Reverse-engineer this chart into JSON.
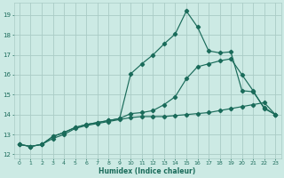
{
  "xlabel": "Humidex (Indice chaleur)",
  "bg_color": "#cceae4",
  "grid_color": "#aaccc6",
  "line_color": "#1a6b5a",
  "xlim": [
    -0.5,
    23.5
  ],
  "ylim": [
    11.8,
    19.6
  ],
  "yticks": [
    12,
    13,
    14,
    15,
    16,
    17,
    18,
    19
  ],
  "xticks": [
    0,
    1,
    2,
    3,
    4,
    5,
    6,
    7,
    8,
    9,
    10,
    11,
    12,
    13,
    14,
    15,
    16,
    17,
    18,
    19,
    20,
    21,
    22,
    23
  ],
  "series1_x": [
    0,
    1,
    2,
    3,
    4,
    5,
    6,
    7,
    8,
    9,
    10,
    11,
    12,
    13,
    14,
    15,
    16,
    17,
    18,
    19,
    20,
    21,
    22,
    23
  ],
  "series1_y": [
    12.5,
    12.4,
    12.5,
    12.8,
    13.0,
    13.3,
    13.45,
    13.55,
    13.65,
    13.75,
    13.85,
    13.9,
    13.9,
    13.9,
    13.95,
    14.0,
    14.05,
    14.1,
    14.2,
    14.3,
    14.4,
    14.5,
    14.6,
    14.0
  ],
  "series2_x": [
    0,
    1,
    2,
    3,
    4,
    5,
    6,
    7,
    8,
    9,
    10,
    11,
    12,
    13,
    14,
    15,
    16,
    17,
    18,
    19,
    20,
    21,
    22,
    23
  ],
  "series2_y": [
    12.5,
    12.4,
    12.5,
    12.9,
    13.1,
    13.35,
    13.5,
    13.6,
    13.7,
    13.8,
    14.05,
    14.1,
    14.2,
    14.5,
    14.9,
    15.8,
    16.4,
    16.55,
    16.7,
    16.8,
    16.0,
    15.2,
    14.3,
    14.0
  ],
  "series3_x": [
    0,
    1,
    2,
    3,
    4,
    5,
    6,
    7,
    8,
    9,
    10,
    11,
    12,
    13,
    14,
    15,
    16,
    17,
    18,
    19,
    20,
    21,
    22,
    23
  ],
  "series3_y": [
    12.5,
    12.4,
    12.5,
    12.9,
    13.1,
    13.35,
    13.5,
    13.6,
    13.7,
    13.8,
    16.05,
    16.55,
    17.0,
    17.55,
    18.05,
    19.2,
    18.4,
    17.2,
    17.1,
    17.15,
    15.2,
    15.15,
    14.35,
    14.0
  ]
}
